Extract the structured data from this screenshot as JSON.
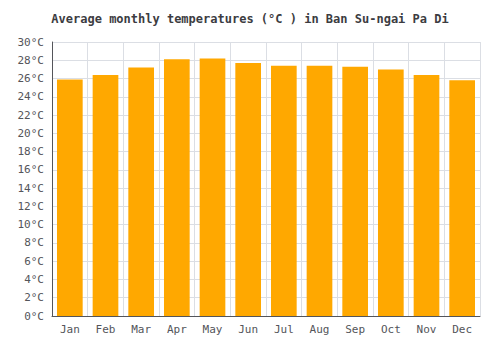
{
  "chart_data": {
    "type": "bar",
    "title": "Average monthly temperatures (°C ) in Ban Su-ngai Pa Di",
    "categories": [
      "Jan",
      "Feb",
      "Mar",
      "Apr",
      "May",
      "Jun",
      "Jul",
      "Aug",
      "Sep",
      "Oct",
      "Nov",
      "Dec"
    ],
    "values": [
      25.9,
      26.4,
      27.2,
      28.1,
      28.2,
      27.7,
      27.4,
      27.4,
      27.3,
      27.0,
      26.4,
      25.8
    ],
    "color": "#FFA800",
    "ylim": [
      0,
      30
    ],
    "yticks": [
      {
        "value": 0,
        "label": "0°C"
      },
      {
        "value": 2,
        "label": "2°C"
      },
      {
        "value": 4,
        "label": "4°C"
      },
      {
        "value": 6,
        "label": "6°C"
      },
      {
        "value": 8,
        "label": "8°C"
      },
      {
        "value": 10,
        "label": "10°C"
      },
      {
        "value": 12,
        "label": "12°C"
      },
      {
        "value": 14,
        "label": "14°C"
      },
      {
        "value": 16,
        "label": "16°C"
      },
      {
        "value": 18,
        "label": "18°C"
      },
      {
        "value": 20,
        "label": "20°C"
      },
      {
        "value": 22,
        "label": "22°C"
      },
      {
        "value": 24,
        "label": "24°C"
      },
      {
        "value": 26,
        "label": "26°C"
      },
      {
        "value": 28,
        "label": "28°C"
      },
      {
        "value": 30,
        "label": "30°C"
      }
    ],
    "grid": true
  }
}
